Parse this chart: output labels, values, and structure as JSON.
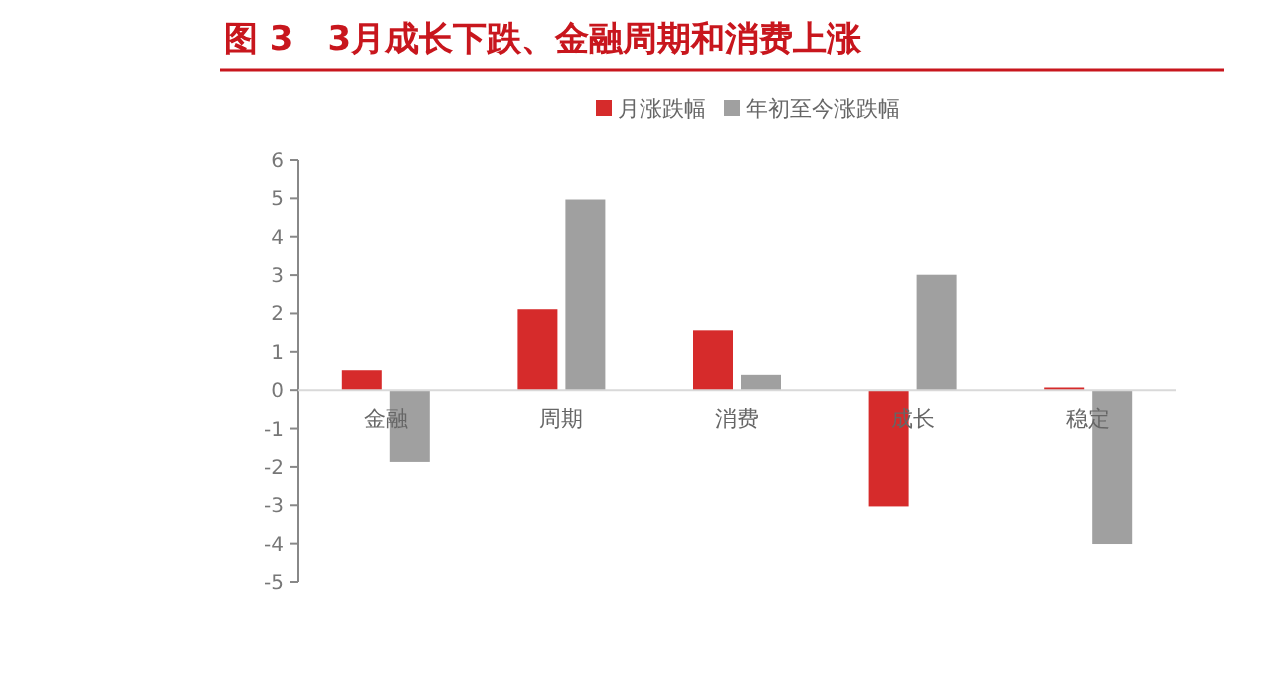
{
  "chart_data": {
    "type": "bar",
    "title": "图 3　3月成长下跌、金融周期和消费上涨",
    "categories": [
      "金融",
      "周期",
      "消费",
      "成长",
      "稳定"
    ],
    "series": [
      {
        "name": "月涨跌幅",
        "color": "#d62b2b",
        "values": [
          0.52,
          2.11,
          1.56,
          -3.03,
          0.07
        ]
      },
      {
        "name": "年初至今涨跌幅",
        "color": "#a0a0a0",
        "values": [
          -1.87,
          4.97,
          0.4,
          3.01,
          -4.01
        ]
      }
    ],
    "ylim": [
      -5,
      6
    ],
    "yticks": [
      -5,
      -4,
      -3,
      -2,
      -1,
      0,
      1,
      2,
      3,
      4,
      5,
      6
    ],
    "grid": false,
    "legend": "top"
  }
}
